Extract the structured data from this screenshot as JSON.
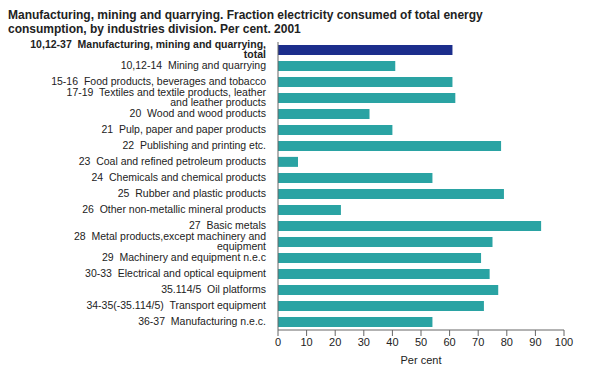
{
  "chart_data": {
    "type": "bar",
    "orientation": "horizontal",
    "title": "Manufacturing, mining and quarrying. Fraction electricity consumed of total energy consumption, by industries division. Per cent. 2001",
    "xlabel": "Per cent",
    "categories": [
      "10,12-37  Manufacturing, mining and quarrying, total",
      "10,12-14  Mining and quarrying",
      "15-16  Food products, beverages and tobacco",
      "17-19  Textiles and textile products, leather and leather products",
      "20  Wood and wood products",
      "21  Pulp, paper and paper products",
      "22  Publishing and printing etc.",
      "23  Coal and refined petroleum products",
      "24  Chemicals and chemical products",
      "25  Rubber and plastic products",
      "26  Other non-metallic mineral products",
      "27  Basic metals",
      "28  Metal products,except machinery and equipment",
      "29  Machinery and equipment n.e.c",
      "30-33  Electrical and optical equipment",
      "35.114/5  Oil platforms",
      "34-35(-35.114/5)  Transport equipment",
      "36-37  Manufacturing n.e.c."
    ],
    "values": [
      61,
      41,
      61,
      62,
      32,
      40,
      78,
      7,
      54,
      79,
      22,
      92,
      75,
      71,
      74,
      77,
      72,
      54
    ],
    "colors": [
      "#1c2e8c",
      "#2aa3a3",
      "#2aa3a3",
      "#2aa3a3",
      "#2aa3a3",
      "#2aa3a3",
      "#2aa3a3",
      "#2aa3a3",
      "#2aa3a3",
      "#2aa3a3",
      "#2aa3a3",
      "#2aa3a3",
      "#2aa3a3",
      "#2aa3a3",
      "#2aa3a3",
      "#2aa3a3",
      "#2aa3a3",
      "#2aa3a3"
    ],
    "xlim": [
      0,
      100
    ],
    "xticks": [
      0,
      10,
      20,
      30,
      40,
      50,
      60,
      70,
      80,
      90,
      100
    ],
    "grid": false
  }
}
